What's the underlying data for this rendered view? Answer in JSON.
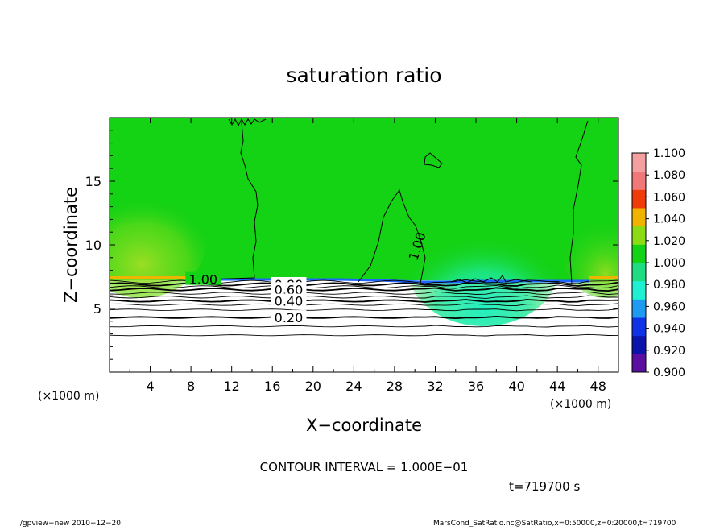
{
  "chart_data": {
    "type": "heatmap",
    "title": "saturation ratio",
    "xlabel": "X−coordinate",
    "ylabel": "Z−coordinate",
    "x_unit": "(×1000 m)",
    "y_unit": "(×1000 m)",
    "xlim": [
      0,
      50
    ],
    "ylim": [
      0,
      20
    ],
    "x_ticks": [
      4,
      8,
      12,
      16,
      20,
      24,
      28,
      32,
      36,
      40,
      44,
      48
    ],
    "y_ticks": [
      5,
      10,
      15
    ],
    "contour_interval_text": "CONTOUR INTERVAL = 1.000E−01",
    "time_text": "t=719700 s",
    "colorbar": {
      "levels": [
        0.9,
        0.92,
        0.94,
        0.96,
        0.98,
        1.0,
        1.02,
        1.04,
        1.06,
        1.08,
        1.1
      ],
      "labels": [
        "0.900",
        "0.920",
        "0.940",
        "0.960",
        "0.980",
        "1.000",
        "1.020",
        "1.040",
        "1.060",
        "1.080",
        "1.100"
      ],
      "colors": [
        "#5a0fa0",
        "#0a14aa",
        "#1032e6",
        "#1e9bf0",
        "#1ef0d2",
        "#1edc82",
        "#14d214",
        "#8cdc14",
        "#f0b400",
        "#f03c0a",
        "#f07878",
        "#f4a0a0"
      ]
    },
    "contour_labels": [
      {
        "text": "1.00",
        "x": 9.2,
        "z": 7.3
      },
      {
        "text": "0.80",
        "x": 17.6,
        "z": 6.9
      },
      {
        "text": "0.60",
        "x": 17.6,
        "z": 6.5
      },
      {
        "text": "0.40",
        "x": 17.6,
        "z": 5.6
      },
      {
        "text": "0.20",
        "x": 17.6,
        "z": 4.3
      },
      {
        "text": "1.00",
        "x": 30.2,
        "z": 9.9
      }
    ],
    "contours_lower": [
      {
        "value": 0.2,
        "z": 4.3
      },
      {
        "value": 0.4,
        "z": 5.6
      },
      {
        "value": 0.6,
        "z": 6.5
      },
      {
        "value": 0.8,
        "z": 6.9
      }
    ],
    "footer_left": "./gpview−new   2010−12−20",
    "footer_right": "MarsCond_SatRatio.nc@SatRatio,x=0:50000,z=0:20000,t=719700"
  }
}
